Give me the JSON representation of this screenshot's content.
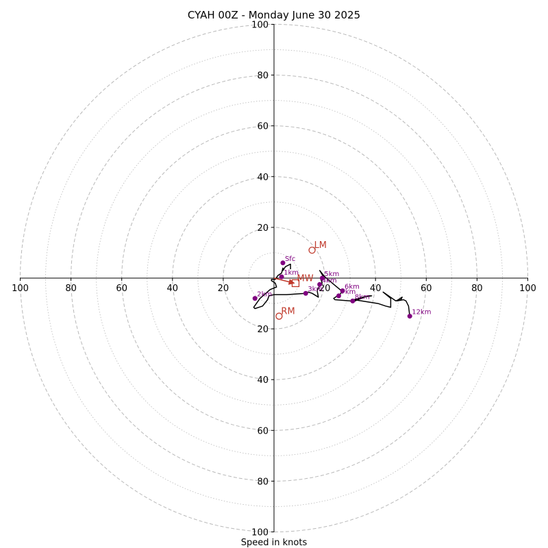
{
  "chart_data": {
    "type": "scatter",
    "title": "CYAH 00Z - Monday June 30 2025",
    "xlabel": "Speed in knots",
    "axis_range": [
      -100,
      100
    ],
    "ring_major": [
      20,
      40,
      60,
      80,
      100
    ],
    "ring_minor": [
      10,
      30,
      50,
      70,
      90
    ],
    "grid": true,
    "ticks": [
      {
        "value": -100,
        "label": "100"
      },
      {
        "value": -80,
        "label": "80"
      },
      {
        "value": -60,
        "label": "60"
      },
      {
        "value": -40,
        "label": "40"
      },
      {
        "value": -20,
        "label": "20"
      },
      {
        "value": 20,
        "label": "20"
      },
      {
        "value": 40,
        "label": "40"
      },
      {
        "value": 60,
        "label": "60"
      },
      {
        "value": 80,
        "label": "80"
      },
      {
        "value": 100,
        "label": "100"
      }
    ],
    "colors": {
      "hodograph": "#000000",
      "height_marker": "#800080",
      "storm_motion": "#c0392b",
      "grid": "#b8b8b8"
    },
    "hodograph": [
      [
        6.5,
        -3.5
      ],
      [
        6.5,
        -5.5
      ],
      [
        4.5,
        -4.5
      ],
      [
        3.5,
        -3.0
      ],
      [
        3.5,
        -4.0
      ],
      [
        3.0,
        -2.0
      ],
      [
        1.5,
        -1.0
      ],
      [
        0.5,
        0.5
      ],
      [
        -1.0,
        0.5
      ],
      [
        -1.0,
        1.0
      ],
      [
        0.5,
        2.0
      ],
      [
        1.0,
        3.5
      ],
      [
        -1.5,
        4.5
      ],
      [
        -5.5,
        8.0
      ],
      [
        -8.0,
        11.5
      ],
      [
        -7.5,
        12.0
      ],
      [
        -4.5,
        11.0
      ],
      [
        -2.5,
        8.5
      ],
      [
        -2.0,
        7.0
      ],
      [
        0.0,
        6.5
      ],
      [
        5.0,
        6.5
      ],
      [
        12.5,
        6.0
      ],
      [
        13.5,
        5.5
      ],
      [
        15.0,
        6.0
      ],
      [
        17.5,
        7.5
      ],
      [
        17.0,
        5.0
      ],
      [
        18.0,
        3.0
      ],
      [
        19.0,
        2.0
      ],
      [
        18.5,
        0.5
      ],
      [
        19.0,
        0.0
      ],
      [
        19.5,
        -0.5
      ],
      [
        18.0,
        -3.0
      ],
      [
        20.0,
        -0.5
      ],
      [
        23.0,
        2.0
      ],
      [
        26.0,
        4.5
      ],
      [
        27.0,
        5.0
      ],
      [
        26.0,
        6.5
      ],
      [
        25.0,
        7.0
      ],
      [
        23.5,
        8.0
      ],
      [
        24.0,
        8.5
      ],
      [
        30.0,
        9.0
      ],
      [
        31.0,
        9.5
      ],
      [
        33.0,
        8.5
      ],
      [
        37.0,
        7.0
      ],
      [
        38.5,
        7.0
      ],
      [
        35.0,
        7.5
      ],
      [
        31.5,
        8.5
      ],
      [
        41.0,
        10.0
      ],
      [
        44.0,
        11.0
      ],
      [
        46.0,
        11.5
      ],
      [
        46.0,
        8.0
      ],
      [
        43.0,
        5.5
      ],
      [
        48.0,
        9.0
      ],
      [
        49.0,
        8.5
      ],
      [
        50.5,
        7.5
      ],
      [
        50.0,
        8.5
      ],
      [
        48.5,
        9.0
      ],
      [
        51.0,
        8.5
      ],
      [
        52.0,
        9.0
      ],
      [
        53.0,
        11.0
      ],
      [
        53.5,
        15.0
      ]
    ],
    "height_markers": [
      {
        "label": "Sfc",
        "x": 3.5,
        "y": -6.0
      },
      {
        "label": "1km",
        "x": 3.0,
        "y": -0.5
      },
      {
        "label": "2km",
        "x": -7.5,
        "y": 8.0
      },
      {
        "label": "3km",
        "x": 12.5,
        "y": 6.0
      },
      {
        "label": "4km",
        "x": 18.0,
        "y": 2.5
      },
      {
        "label": "5km",
        "x": 19.0,
        "y": 0.0
      },
      {
        "label": "6km",
        "x": 27.0,
        "y": 5.0
      },
      {
        "label": "7km",
        "x": 25.5,
        "y": 7.0
      },
      {
        "label": "8km",
        "x": 31.0,
        "y": 9.0
      },
      {
        "label": "12km",
        "x": 53.5,
        "y": 15.0
      }
    ],
    "storm_motion": {
      "lm": {
        "label": "LM",
        "x": 15.0,
        "y": -11.0
      },
      "rm": {
        "label": "RM",
        "x": 2.0,
        "y": 15.0
      },
      "mw": {
        "label": "MW",
        "x": 8.5,
        "y": 2.0
      },
      "shear_vector": {
        "from": [
          0.0,
          0.0
        ],
        "to": [
          8.0,
          2.0
        ]
      }
    }
  }
}
